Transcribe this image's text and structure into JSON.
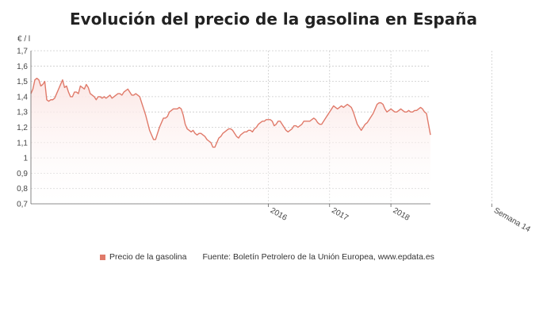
{
  "title": "Evolución del precio de la gasolina en España",
  "unit": "€ / l",
  "legend": {
    "series_label": "Precio de la gasolina",
    "source": "Fuente: Boletín Petrolero de la Unión Europea, www.epdata.es"
  },
  "colors": {
    "line": "#e07a6a",
    "area_top": "#fbe6e4",
    "grid": "#cccccc",
    "axis": "#666666"
  },
  "chart_data": {
    "type": "area",
    "title": "Evolución del precio de la gasolina en España",
    "ylabel": "€ / l",
    "ylim": [
      0.7,
      1.7
    ],
    "yticks": [
      "0,7",
      "0,8",
      "0,9",
      "1",
      "1,1",
      "1,2",
      "1,3",
      "1,4",
      "1,5",
      "1,6",
      "1,7"
    ],
    "xticks": [
      {
        "label": "2016",
        "index": 120
      },
      {
        "label": "2017",
        "index": 151
      },
      {
        "label": "2018",
        "index": 182
      },
      {
        "label": "Semana 14",
        "index": 233
      }
    ],
    "series": [
      {
        "name": "Precio de la gasolina",
        "values": [
          1.42,
          1.45,
          1.51,
          1.52,
          1.51,
          1.47,
          1.48,
          1.5,
          1.38,
          1.37,
          1.38,
          1.38,
          1.39,
          1.42,
          1.45,
          1.48,
          1.51,
          1.46,
          1.47,
          1.43,
          1.4,
          1.4,
          1.43,
          1.43,
          1.42,
          1.47,
          1.46,
          1.45,
          1.48,
          1.46,
          1.42,
          1.41,
          1.4,
          1.38,
          1.4,
          1.4,
          1.39,
          1.4,
          1.39,
          1.4,
          1.41,
          1.39,
          1.4,
          1.41,
          1.42,
          1.42,
          1.41,
          1.43,
          1.44,
          1.45,
          1.43,
          1.41,
          1.41,
          1.42,
          1.41,
          1.4,
          1.36,
          1.32,
          1.28,
          1.23,
          1.18,
          1.15,
          1.12,
          1.12,
          1.16,
          1.2,
          1.23,
          1.26,
          1.26,
          1.27,
          1.3,
          1.31,
          1.32,
          1.32,
          1.32,
          1.33,
          1.32,
          1.28,
          1.22,
          1.19,
          1.18,
          1.17,
          1.18,
          1.16,
          1.15,
          1.16,
          1.16,
          1.15,
          1.14,
          1.12,
          1.11,
          1.1,
          1.07,
          1.07,
          1.1,
          1.13,
          1.14,
          1.16,
          1.17,
          1.18,
          1.19,
          1.19,
          1.18,
          1.16,
          1.14,
          1.13,
          1.15,
          1.16,
          1.17,
          1.17,
          1.18,
          1.18,
          1.17,
          1.19,
          1.2,
          1.22,
          1.23,
          1.24,
          1.24,
          1.25,
          1.25,
          1.25,
          1.24,
          1.21,
          1.22,
          1.24,
          1.24,
          1.22,
          1.2,
          1.18,
          1.17,
          1.18,
          1.19,
          1.21,
          1.21,
          1.2,
          1.21,
          1.22,
          1.24,
          1.24,
          1.24,
          1.24,
          1.25,
          1.26,
          1.25,
          1.23,
          1.22,
          1.22,
          1.24,
          1.26,
          1.28,
          1.3,
          1.32,
          1.34,
          1.33,
          1.32,
          1.33,
          1.34,
          1.33,
          1.34,
          1.35,
          1.34,
          1.33,
          1.3,
          1.26,
          1.22,
          1.2,
          1.18,
          1.2,
          1.22,
          1.23,
          1.25,
          1.27,
          1.29,
          1.32,
          1.35,
          1.36,
          1.36,
          1.35,
          1.32,
          1.3,
          1.31,
          1.32,
          1.31,
          1.3,
          1.3,
          1.31,
          1.32,
          1.31,
          1.3,
          1.3,
          1.31,
          1.3,
          1.3,
          1.31,
          1.31,
          1.32,
          1.33,
          1.32,
          1.3,
          1.29,
          1.22,
          1.15
        ]
      }
    ],
    "grid": true,
    "legend_position": "bottom-left"
  }
}
